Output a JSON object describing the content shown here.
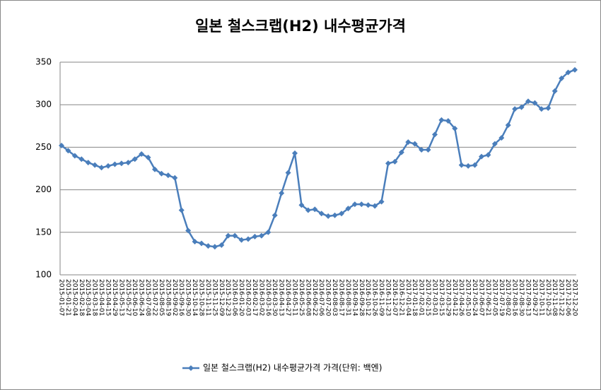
{
  "chart_data": {
    "type": "line",
    "title": "일본 철스크랩(H2) 내수평균가격",
    "categories": [
      "2015-01-07",
      "2015-01-21",
      "2015-02-04",
      "2015-02-18",
      "2015-03-04",
      "2015-03-18",
      "2015-04-01",
      "2015-04-15",
      "2015-04-29",
      "2015-05-13",
      "2015-05-27",
      "2015-06-10",
      "2015-06-24",
      "2015-07-08",
      "2015-07-22",
      "2015-08-05",
      "2015-08-19",
      "2015-09-02",
      "2015-09-16",
      "2015-09-30",
      "2015-10-14",
      "2015-10-28",
      "2015-11-11",
      "2015-11-25",
      "2015-12-09",
      "2015-12-23",
      "2016-01-06",
      "2016-01-20",
      "2016-02-03",
      "2016-02-17",
      "2016-03-02",
      "2016-03-16",
      "2016-03-30",
      "2016-04-13",
      "2016-04-27",
      "2016-05-11",
      "2016-05-25",
      "2016-06-08",
      "2016-06-22",
      "2016-07-06",
      "2016-07-20",
      "2016-08-03",
      "2016-08-17",
      "2016-08-31",
      "2016-09-14",
      "2016-09-28",
      "2016-10-12",
      "2016-10-26",
      "2016-11-09",
      "2016-11-23",
      "2016-12-07",
      "2016-12-21",
      "2017-01-04",
      "2017-01-18",
      "2017-02-01",
      "2017-02-15",
      "2017-03-01",
      "2017-03-15",
      "2017-03-29",
      "2017-04-12",
      "2017-04-26",
      "2017-05-10",
      "2017-05-24",
      "2017-06-07",
      "2017-06-21",
      "2017-07-05",
      "2017-07-19",
      "2017-08-02",
      "2017-08-16",
      "2017-08-30",
      "2017-09-13",
      "2017-09-27",
      "2017-10-11",
      "2017-10-25",
      "2017-11-08",
      "2017-11-22",
      "2017-12-06",
      "2017-12-20"
    ],
    "series": [
      {
        "name": "일본 철스크랩(H2) 내수평균가격 가격(단위: 백엔)",
        "color": "#4a7ebb",
        "values": [
          252,
          246,
          240,
          236,
          232,
          229,
          226,
          228,
          230,
          231,
          232,
          236,
          242,
          238,
          224,
          219,
          217,
          214,
          176,
          152,
          139,
          137,
          134,
          133,
          135,
          146,
          146,
          141,
          142,
          145,
          146,
          150,
          170,
          196,
          220,
          243,
          182,
          176,
          177,
          172,
          169,
          170,
          172,
          178,
          183,
          183,
          182,
          181,
          186,
          231,
          233,
          244,
          256,
          254,
          247,
          247,
          265,
          282,
          281,
          272,
          229,
          228,
          229,
          239,
          241,
          254,
          261,
          276,
          295,
          297,
          304,
          302,
          295,
          296,
          316,
          331,
          338,
          341
        ]
      }
    ],
    "ylim": [
      100,
      350
    ],
    "yticks": [
      100,
      150,
      200,
      250,
      300,
      350
    ],
    "grid": true,
    "legend": "bottom"
  }
}
